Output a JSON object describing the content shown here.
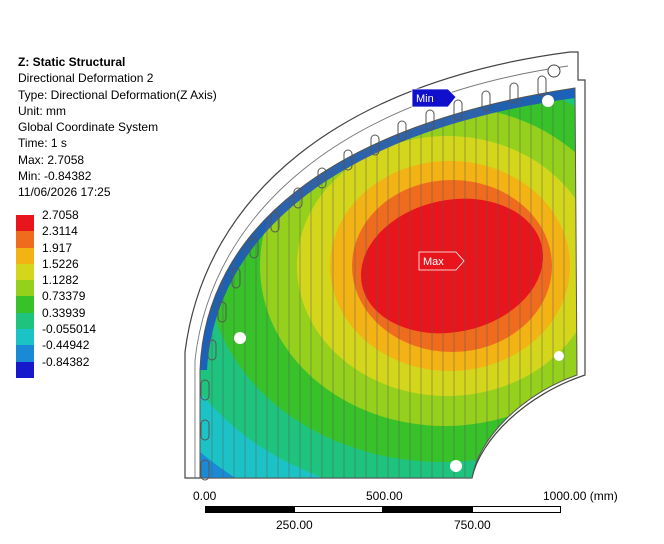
{
  "info": {
    "title": "Z: Static Structural",
    "result": "Directional Deformation 2",
    "type": "Type: Directional Deformation(Z Axis)",
    "unit": "Unit: mm",
    "coordinate_system": "Global Coordinate System",
    "time": "Time: 1 s",
    "max": "Max: 2.7058",
    "min": "Min: -0.84382",
    "timestamp": "11/06/2026 17:25"
  },
  "legend": [
    {
      "label": "2.7058",
      "color": "#e8161c"
    },
    {
      "label": "2.3114",
      "color": "#ef6c1e"
    },
    {
      "label": "1.917",
      "color": "#f3b315"
    },
    {
      "label": "1.5226",
      "color": "#d3d61b"
    },
    {
      "label": "1.1282",
      "color": "#95d11c"
    },
    {
      "label": "0.73379",
      "color": "#38c22a"
    },
    {
      "label": "0.33939",
      "color": "#1ec47e"
    },
    {
      "label": "-0.055014",
      "color": "#1bc3c6"
    },
    {
      "label": "-0.44942",
      "color": "#1a8ad6"
    },
    {
      "label": "-0.84382",
      "color": "#1718cc"
    }
  ],
  "probes": {
    "max_label": "Max",
    "min_label": "Min",
    "max_color": "#e8161c",
    "min_color": "#1010cc"
  },
  "scale_bar": {
    "top_labels": [
      "0.00",
      "500.00",
      "1000.00 (mm)"
    ],
    "bottom_labels": [
      "250.00",
      "750.00"
    ]
  }
}
